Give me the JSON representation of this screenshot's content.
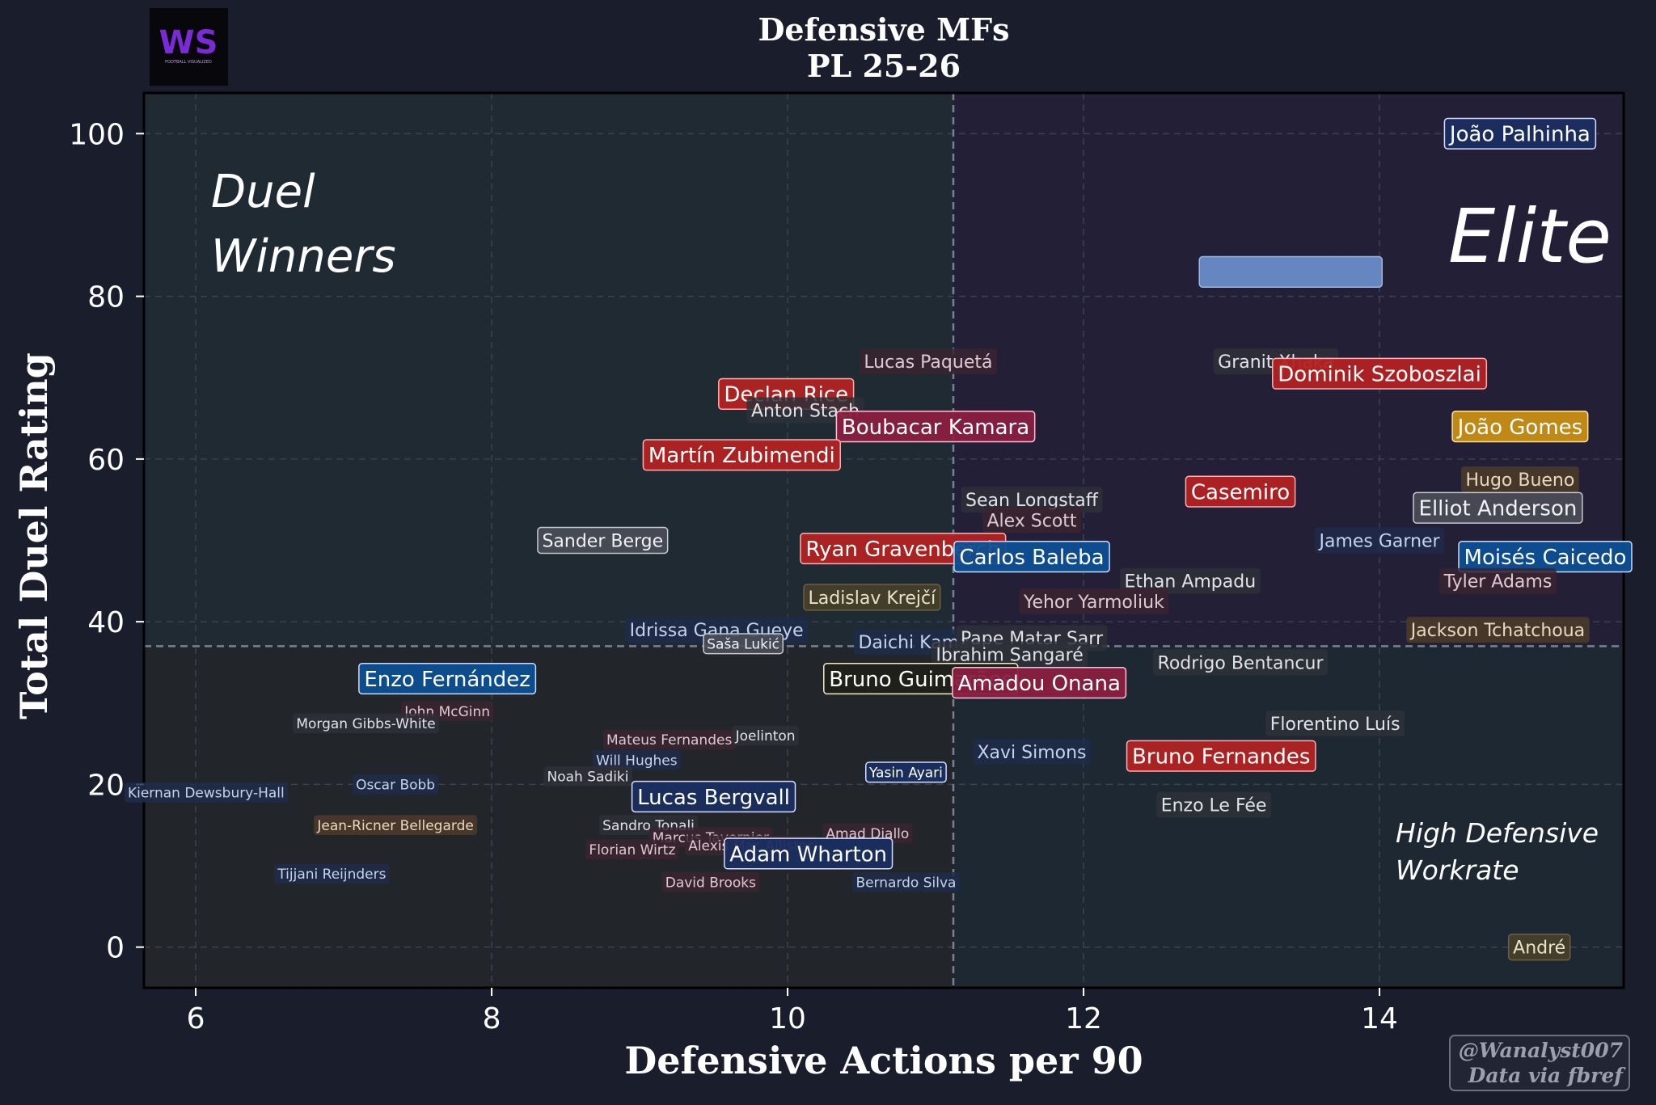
{
  "title_line1": "Defensive MFs",
  "title_line2": "PL 25-26",
  "logo": {
    "text": "WS",
    "subtitle": "FOOTBALL VISUALIZED"
  },
  "quadrants": {
    "top_left": [
      "Duel",
      "Winners"
    ],
    "top_right": "Elite",
    "bottom_right": [
      "High Defensive",
      "Workrate"
    ]
  },
  "watermark": {
    "line1": "@Wanalyst007",
    "line2": "Data via fbref"
  },
  "colors": {
    "background": "#1a1d2b",
    "plot_bg": "#1f2530",
    "top_right_bg": "#221f35",
    "red": "#b32222",
    "navy": "#1a2e60",
    "blue": "#0d4f92",
    "magenta": "#8a1f40",
    "gold": "#c98f14",
    "white_label": "#e8e8f0"
  },
  "chart_data": {
    "type": "scatter",
    "title": "Defensive MFs PL 25-26",
    "xlabel": "Defensive Actions per 90",
    "ylabel": "Total Duel Rating",
    "xlim": [
      5.65,
      15.65
    ],
    "ylim": [
      -5,
      105
    ],
    "xticks": [
      6,
      8,
      10,
      12,
      14
    ],
    "yticks": [
      0,
      20,
      40,
      60,
      80,
      100
    ],
    "x_mean": 11.12,
    "y_mean": 37,
    "grid": true,
    "points": [
      {
        "name": "João Palhinha",
        "x": 14.95,
        "y": 100,
        "style": "navy",
        "size": "l"
      },
      {
        "name": "",
        "x": 13.4,
        "y": 83,
        "style": "steel",
        "size": "l"
      },
      {
        "name": "Lucas Paquetá",
        "x": 10.95,
        "y": 72,
        "style": "faint-red",
        "size": "m"
      },
      {
        "name": "Granit Xhaka",
        "x": 13.3,
        "y": 72,
        "style": "faint-grey",
        "size": "m"
      },
      {
        "name": "Dominik Szoboszlai",
        "x": 14.0,
        "y": 70.5,
        "style": "red",
        "size": "l"
      },
      {
        "name": "Declan Rice",
        "x": 9.99,
        "y": 68,
        "style": "red",
        "size": "l"
      },
      {
        "name": "Anton Stach",
        "x": 10.12,
        "y": 66,
        "style": "faint-grey",
        "size": "m"
      },
      {
        "name": "Boubacar Kamara",
        "x": 11.0,
        "y": 64,
        "style": "magenta",
        "size": "l"
      },
      {
        "name": "João Gomes",
        "x": 14.95,
        "y": 64,
        "style": "gold",
        "size": "l"
      },
      {
        "name": "Martín Zubimendi",
        "x": 9.69,
        "y": 60.5,
        "style": "red",
        "size": "l"
      },
      {
        "name": "Casemiro",
        "x": 13.06,
        "y": 56,
        "style": "red",
        "size": "l"
      },
      {
        "name": "Hugo Bueno",
        "x": 14.95,
        "y": 57.5,
        "style": "faint-brown",
        "size": "m"
      },
      {
        "name": "Sean Longstaff",
        "x": 11.65,
        "y": 55,
        "style": "faint-grey",
        "size": "m"
      },
      {
        "name": "Elliot Anderson",
        "x": 14.8,
        "y": 54,
        "style": "grey",
        "size": "l"
      },
      {
        "name": "Alex Scott",
        "x": 11.65,
        "y": 52.5,
        "style": "faint-red",
        "size": "m"
      },
      {
        "name": "Sander Berge",
        "x": 8.75,
        "y": 50,
        "style": "grey",
        "size": "m"
      },
      {
        "name": "James Garner",
        "x": 14.0,
        "y": 50,
        "style": "faint-navy",
        "size": "m"
      },
      {
        "name": "Ryan Gravenberch",
        "x": 10.78,
        "y": 49,
        "style": "red",
        "size": "l"
      },
      {
        "name": "Carlos Baleba",
        "x": 11.65,
        "y": 48,
        "style": "blue",
        "size": "l"
      },
      {
        "name": "Moisés Caicedo",
        "x": 15.12,
        "y": 48,
        "style": "blue",
        "size": "l"
      },
      {
        "name": "Ethan Ampadu",
        "x": 12.72,
        "y": 45,
        "style": "faint-grey",
        "size": "m"
      },
      {
        "name": "Tyler Adams",
        "x": 14.8,
        "y": 45,
        "style": "faint-red",
        "size": "m"
      },
      {
        "name": "Ladislav Krejčí",
        "x": 10.57,
        "y": 43,
        "style": "olive",
        "size": "m"
      },
      {
        "name": "Yehor Yarmoliuk",
        "x": 12.07,
        "y": 42.5,
        "style": "faint-red",
        "size": "m"
      },
      {
        "name": "Idrissa Gana Gueye",
        "x": 9.52,
        "y": 39,
        "style": "faint-navy",
        "size": "m"
      },
      {
        "name": "Jackson Tchatchoua",
        "x": 14.8,
        "y": 39,
        "style": "faint-brown",
        "size": "m"
      },
      {
        "name": "Saša Lukić",
        "x": 9.7,
        "y": 37.3,
        "style": "grey",
        "size": "s"
      },
      {
        "name": "Daichi Kamada",
        "x": 10.93,
        "y": 37.5,
        "style": "faint-navy",
        "size": "m"
      },
      {
        "name": "Pape Matar Sarr",
        "x": 11.65,
        "y": 38,
        "style": "faint-grey",
        "size": "m"
      },
      {
        "name": "Ibrahim Sangaré",
        "x": 11.5,
        "y": 36,
        "style": "faint-grey",
        "size": "m"
      },
      {
        "name": "Rodrigo Bentancur",
        "x": 13.06,
        "y": 35,
        "style": "faint-grey",
        "size": "m"
      },
      {
        "name": "Enzo Fernández",
        "x": 7.7,
        "y": 33,
        "style": "blue",
        "size": "l"
      },
      {
        "name": "Bruno Guimarães",
        "x": 10.9,
        "y": 33,
        "style": "cream",
        "size": "l"
      },
      {
        "name": "Amadou Onana",
        "x": 11.7,
        "y": 32.5,
        "style": "magenta",
        "size": "l"
      },
      {
        "name": "John McGinn",
        "x": 7.7,
        "y": 29,
        "style": "faint-red",
        "size": "s"
      },
      {
        "name": "Morgan Gibbs-White",
        "x": 7.15,
        "y": 27.5,
        "style": "faint-grey",
        "size": "s"
      },
      {
        "name": "Florentino Luís",
        "x": 13.7,
        "y": 27.5,
        "style": "faint-grey",
        "size": "m"
      },
      {
        "name": "Mateus Fernandes",
        "x": 9.2,
        "y": 25.5,
        "style": "faint-red",
        "size": "s"
      },
      {
        "name": "Joelinton",
        "x": 9.85,
        "y": 26,
        "style": "faint-grey",
        "size": "s"
      },
      {
        "name": "Xavi Simons",
        "x": 11.65,
        "y": 24,
        "style": "faint-navy",
        "size": "m"
      },
      {
        "name": "Bruno Fernandes",
        "x": 12.93,
        "y": 23.5,
        "style": "red",
        "size": "l"
      },
      {
        "name": "Will Hughes",
        "x": 8.98,
        "y": 23,
        "style": "faint-navy",
        "size": "s"
      },
      {
        "name": "Yasin Ayari",
        "x": 10.8,
        "y": 21.5,
        "style": "navy",
        "size": "s"
      },
      {
        "name": "Noah Sadiki",
        "x": 8.65,
        "y": 21,
        "style": "faint-grey",
        "size": "s"
      },
      {
        "name": "Kiernan Dewsbury-Hall",
        "x": 6.07,
        "y": 19,
        "style": "faint-navy",
        "size": "s"
      },
      {
        "name": "Oscar Bobb",
        "x": 7.35,
        "y": 20,
        "style": "faint-navy",
        "size": "s"
      },
      {
        "name": "Lucas Bergvall",
        "x": 9.5,
        "y": 18.5,
        "style": "navy",
        "size": "l"
      },
      {
        "name": "Enzo Le Fée",
        "x": 12.88,
        "y": 17.5,
        "style": "faint-grey",
        "size": "m"
      },
      {
        "name": "Jean-Ricner Bellegarde",
        "x": 7.35,
        "y": 15,
        "style": "faint-brown",
        "size": "s"
      },
      {
        "name": "Sandro Tonali",
        "x": 9.06,
        "y": 15,
        "style": "faint-grey",
        "size": "s"
      },
      {
        "name": "Amad Diallo",
        "x": 10.54,
        "y": 14,
        "style": "faint-red",
        "size": "s"
      },
      {
        "name": "Marcus Tavernier",
        "x": 9.48,
        "y": 13.5,
        "style": "faint-red",
        "size": "s"
      },
      {
        "name": "Alexis Mac Allister",
        "x": 9.75,
        "y": 12.5,
        "style": "faint-red",
        "size": "s"
      },
      {
        "name": "Florian Wirtz",
        "x": 8.95,
        "y": 12,
        "style": "faint-red",
        "size": "s"
      },
      {
        "name": "Adam Wharton",
        "x": 10.14,
        "y": 11.5,
        "style": "navy",
        "size": "l"
      },
      {
        "name": "Tijjani Reijnders",
        "x": 6.92,
        "y": 9,
        "style": "faint-navy",
        "size": "s"
      },
      {
        "name": "David Brooks",
        "x": 9.48,
        "y": 8,
        "style": "faint-red",
        "size": "s"
      },
      {
        "name": "Bernardo Silva",
        "x": 10.8,
        "y": 8,
        "style": "faint-navy",
        "size": "s"
      },
      {
        "name": "André",
        "x": 15.08,
        "y": 0,
        "style": "olive",
        "size": "m"
      }
    ]
  }
}
